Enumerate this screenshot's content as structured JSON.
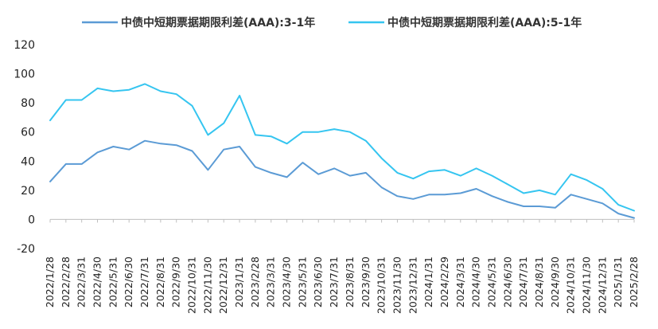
{
  "chart_data": {
    "type": "line",
    "title": "",
    "xlabel": "",
    "ylabel": "",
    "ylim": [
      -20,
      120
    ],
    "yticks": [
      -20,
      0,
      20,
      40,
      60,
      80,
      100,
      120
    ],
    "grid": false,
    "legend_position": "top",
    "x": [
      "2022/1/28",
      "2022/2/28",
      "2022/3/31",
      "2022/4/30",
      "2022/5/31",
      "2022/6/30",
      "2022/7/31",
      "2022/8/31",
      "2022/9/30",
      "2022/10/31",
      "2022/11/30",
      "2022/12/31",
      "2023/1/31",
      "2023/2/28",
      "2023/3/31",
      "2023/4/30",
      "2023/5/31",
      "2023/6/30",
      "2023/7/31",
      "2023/8/31",
      "2023/9/30",
      "2023/10/31",
      "2023/11/30",
      "2023/12/31",
      "2024/1/31",
      "2024/2/29",
      "2024/3/31",
      "2024/4/30",
      "2024/5/31",
      "2024/6/30",
      "2024/7/31",
      "2024/8/31",
      "2024/9/30",
      "2024/10/31",
      "2024/11/30",
      "2024/12/31",
      "2025/1/31",
      "2025/2/28"
    ],
    "series": [
      {
        "name": "中债中短期票据期限利差(AAA):3-1年",
        "color": "#5b9bd5",
        "values": [
          26,
          38,
          38,
          46,
          50,
          48,
          54,
          52,
          51,
          47,
          34,
          48,
          50,
          36,
          32,
          29,
          39,
          31,
          35,
          30,
          32,
          22,
          16,
          14,
          17,
          17,
          18,
          21,
          16,
          12,
          9,
          9,
          8,
          17,
          14,
          11,
          4,
          1
        ]
      },
      {
        "name": "中债中短期票据期限利差(AAA):5-1年",
        "color": "#35c5f0",
        "values": [
          68,
          82,
          82,
          90,
          88,
          89,
          93,
          88,
          86,
          78,
          58,
          66,
          85,
          58,
          57,
          52,
          60,
          60,
          62,
          60,
          54,
          42,
          32,
          28,
          33,
          34,
          30,
          35,
          30,
          24,
          18,
          20,
          17,
          31,
          27,
          21,
          10,
          6
        ]
      }
    ]
  }
}
